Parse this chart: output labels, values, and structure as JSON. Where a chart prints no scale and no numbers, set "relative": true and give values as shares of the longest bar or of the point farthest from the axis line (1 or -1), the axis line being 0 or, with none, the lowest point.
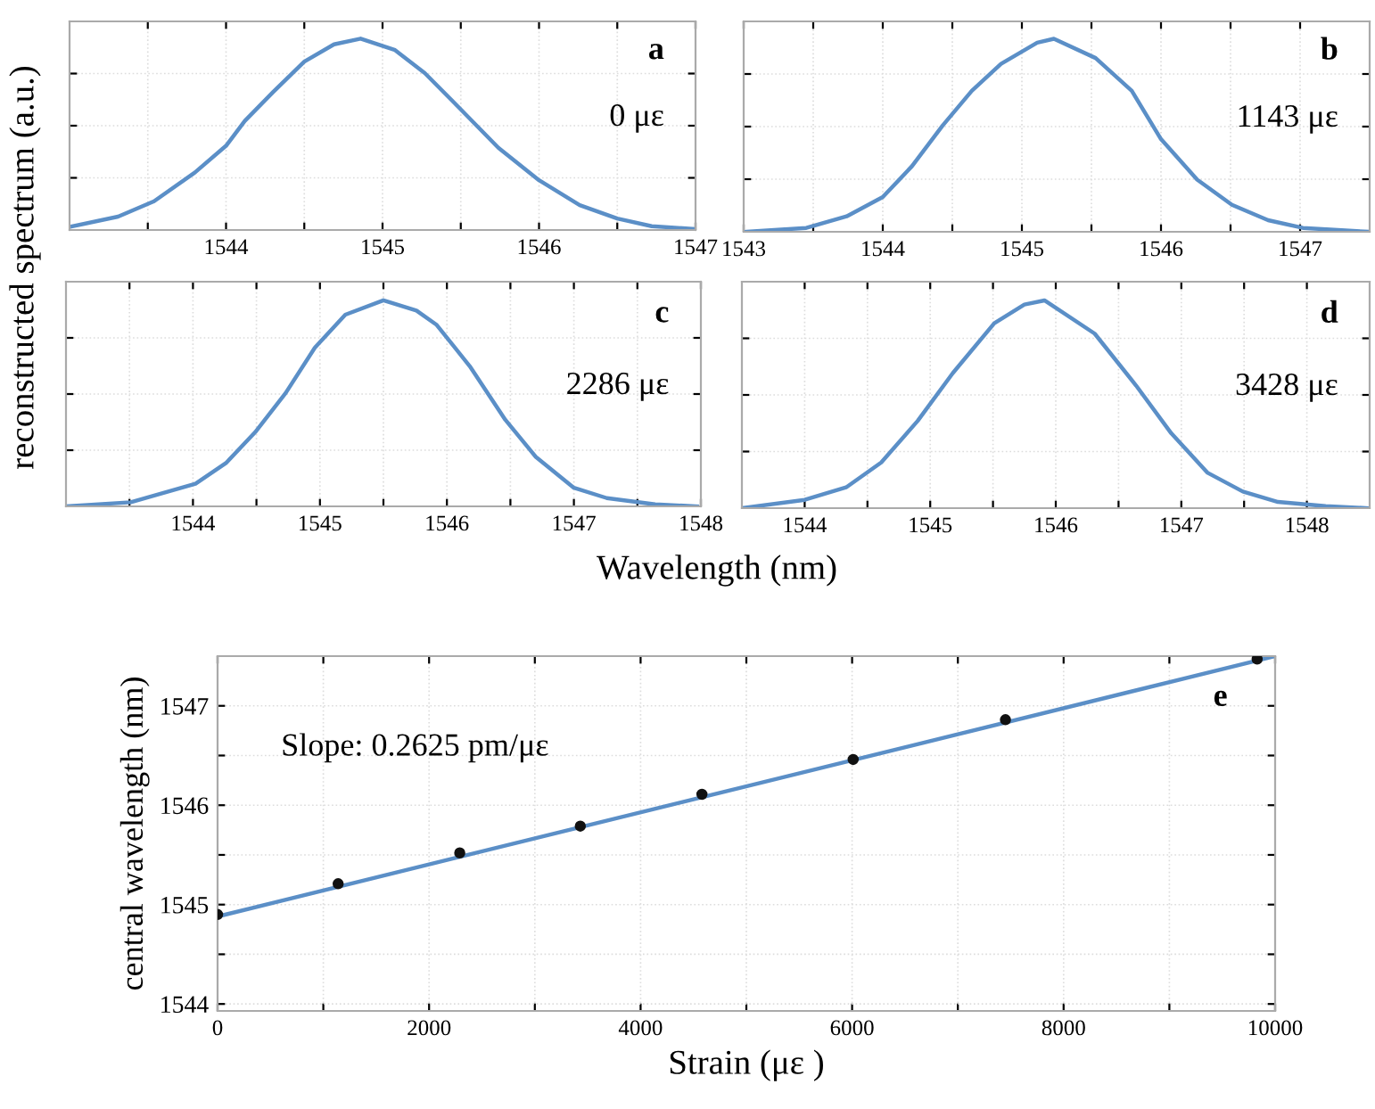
{
  "chart_data": [
    {
      "type": "line",
      "relative": true,
      "ylabel": "reconstructed spectrum (a.u.)",
      "xlim": [
        1543,
        1547
      ],
      "xticks": [
        {
          "value": 1543.5,
          "label": null
        },
        1544,
        {
          "value": 1544.5,
          "label": null
        },
        1545,
        {
          "value": 1545.5,
          "label": null
        },
        1546,
        {
          "value": 1546.5,
          "label": null
        },
        1547
      ],
      "tick_labels": "x",
      "grid": true,
      "marker": "none",
      "annotations": [
        "a",
        "0 με"
      ],
      "series": [
        {
          "color": "#5b8fc7",
          "x": [
            1543.0,
            1543.31,
            1543.54,
            1543.8,
            1544.0,
            1544.12,
            1544.3,
            1544.5,
            1544.69,
            1544.86,
            1545.08,
            1545.27,
            1545.5,
            1545.74,
            1546.0,
            1546.26,
            1546.5,
            1546.72,
            1547.0
          ],
          "values": [
            0.016,
            0.07,
            0.15,
            0.3,
            0.44,
            0.57,
            0.72,
            0.88,
            0.97,
            1.0,
            0.94,
            0.82,
            0.63,
            0.43,
            0.26,
            0.13,
            0.06,
            0.02,
            0.005
          ]
        }
      ]
    },
    {
      "type": "line",
      "relative": true,
      "xlim": [
        1543,
        1547.5
      ],
      "xticks": [
        1543,
        {
          "value": 1543.5,
          "label": null
        },
        1544,
        {
          "value": 1544.5,
          "label": null
        },
        1545,
        {
          "value": 1545.5,
          "label": null
        },
        1546,
        {
          "value": 1546.5,
          "label": null
        },
        1547
      ],
      "tick_labels": "x",
      "grid": true,
      "marker": "none",
      "annotations": [
        "b",
        "1143 με"
      ],
      "series": [
        {
          "color": "#5b8fc7",
          "x": [
            1543.02,
            1543.45,
            1543.74,
            1544.0,
            1544.21,
            1544.43,
            1544.64,
            1544.85,
            1545.11,
            1545.23,
            1545.53,
            1545.79,
            1546.0,
            1546.26,
            1546.51,
            1546.77,
            1547.02,
            1547.49
          ],
          "values": [
            0.0,
            0.02,
            0.08,
            0.18,
            0.34,
            0.55,
            0.73,
            0.87,
            0.98,
            1.0,
            0.9,
            0.73,
            0.48,
            0.27,
            0.14,
            0.06,
            0.02,
            0.0
          ]
        }
      ]
    },
    {
      "type": "line",
      "relative": true,
      "xlabel": "Wavelength (nm)",
      "xlim": [
        1543,
        1548
      ],
      "xticks": [
        {
          "value": 1543.5,
          "label": null
        },
        1544,
        {
          "value": 1544.5,
          "label": null
        },
        1545,
        {
          "value": 1545.5,
          "label": null
        },
        1546,
        {
          "value": 1546.5,
          "label": null
        },
        1547,
        {
          "value": 1547.5,
          "label": null
        },
        1548
      ],
      "tick_labels": "x",
      "grid": true,
      "marker": "none",
      "annotations": [
        "c",
        "2286 με"
      ],
      "series": [
        {
          "color": "#5b8fc7",
          "x": [
            1543.0,
            1543.51,
            1544.02,
            1544.26,
            1544.49,
            1544.73,
            1544.96,
            1545.2,
            1545.5,
            1545.76,
            1545.92,
            1546.18,
            1546.46,
            1546.7,
            1547.0,
            1547.26,
            1547.64,
            1547.97
          ],
          "values": [
            0.0,
            0.02,
            0.11,
            0.21,
            0.36,
            0.55,
            0.77,
            0.93,
            1.0,
            0.95,
            0.88,
            0.68,
            0.42,
            0.24,
            0.09,
            0.04,
            0.01,
            0.0
          ]
        }
      ]
    },
    {
      "type": "line",
      "relative": true,
      "xlim": [
        1543.5,
        1548.5
      ],
      "xticks": [
        1544,
        {
          "value": 1544.5,
          "label": null
        },
        1545,
        {
          "value": 1545.5,
          "label": null
        },
        1546,
        {
          "value": 1546.5,
          "label": null
        },
        1547,
        {
          "value": 1547.5,
          "label": null
        },
        1548
      ],
      "tick_labels": "x",
      "grid": true,
      "marker": "none",
      "annotations": [
        "d",
        "3428 με"
      ],
      "series": [
        {
          "color": "#5b8fc7",
          "x": [
            1543.5,
            1544.0,
            1544.33,
            1544.61,
            1544.9,
            1545.18,
            1545.51,
            1545.75,
            1545.91,
            1546.31,
            1546.64,
            1546.92,
            1547.21,
            1547.49,
            1547.77,
            1548.15,
            1548.48
          ],
          "values": [
            0.0,
            0.04,
            0.1,
            0.22,
            0.42,
            0.65,
            0.89,
            0.98,
            1.0,
            0.84,
            0.59,
            0.36,
            0.17,
            0.08,
            0.03,
            0.01,
            0.0
          ]
        }
      ]
    },
    {
      "type": "scatter",
      "xlabel": "Strain (με )",
      "ylabel": "central wavelength (nm)",
      "xlim": [
        0,
        10000
      ],
      "xticks": [
        0,
        {
          "value": 1000,
          "label": null
        },
        2000,
        {
          "value": 3000,
          "label": null
        },
        4000,
        {
          "value": 5000,
          "label": null
        },
        6000,
        {
          "value": 7000,
          "label": null
        },
        8000,
        {
          "value": 9000,
          "label": null
        },
        10000
      ],
      "ylim": [
        1543.93,
        1547.5
      ],
      "yticks": [
        1544,
        {
          "value": 1544.5,
          "label": null
        },
        1545,
        {
          "value": 1545.5,
          "label": null
        },
        1546,
        {
          "value": 1546.5,
          "label": null
        },
        1547
      ],
      "grid": true,
      "annotations": [
        "e",
        "Slope: 0.2625 pm/με"
      ],
      "series": [
        {
          "type": "line",
          "color": "#5b8fc7",
          "x": [
            0,
            10000
          ],
          "values": [
            1544.88,
            1547.5
          ]
        },
        {
          "type": "scatter",
          "marker": "circle",
          "color": "#111111",
          "x": [
            0,
            1140,
            2290,
            3430,
            4580,
            6010,
            7450,
            9830
          ],
          "values": [
            1544.9,
            1545.21,
            1545.52,
            1545.79,
            1546.11,
            1546.46,
            1546.86,
            1547.47
          ]
        }
      ]
    }
  ]
}
